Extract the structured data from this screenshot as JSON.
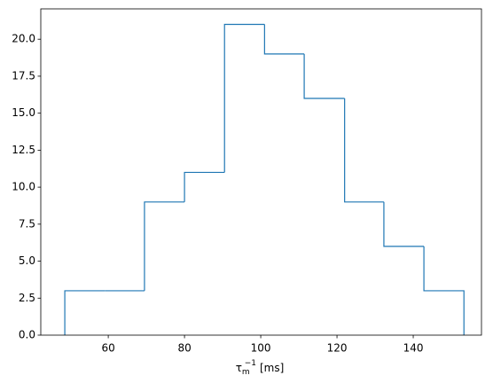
{
  "chart_data": {
    "type": "histogram",
    "xlabel": {
      "symbol": "τ",
      "sub": "m",
      "sup": "−1",
      "unit": "[ms]"
    },
    "bins": [
      48.6,
      59.1,
      69.5,
      80.0,
      90.5,
      101.0,
      111.4,
      122.0,
      132.3,
      142.8,
      153.3
    ],
    "values": [
      3,
      3,
      9,
      11,
      21,
      19,
      16,
      9,
      6,
      3
    ],
    "color": "#1f77b4",
    "xlim": [
      42.3,
      157.9
    ],
    "xticks": [
      60,
      80,
      100,
      120,
      140
    ],
    "ylim": [
      0,
      22.05
    ],
    "yticks": [
      {
        "value": 0,
        "label": "0.0"
      },
      {
        "value": 2.5,
        "label": "2.5"
      },
      {
        "value": 5,
        "label": "5.0"
      },
      {
        "value": 7.5,
        "label": "7.5"
      },
      {
        "value": 10,
        "label": "10.0"
      },
      {
        "value": 12.5,
        "label": "12.5"
      },
      {
        "value": 15,
        "label": "15.0"
      },
      {
        "value": 17.5,
        "label": "17.5"
      },
      {
        "value": 20,
        "label": "20.0"
      }
    ]
  }
}
